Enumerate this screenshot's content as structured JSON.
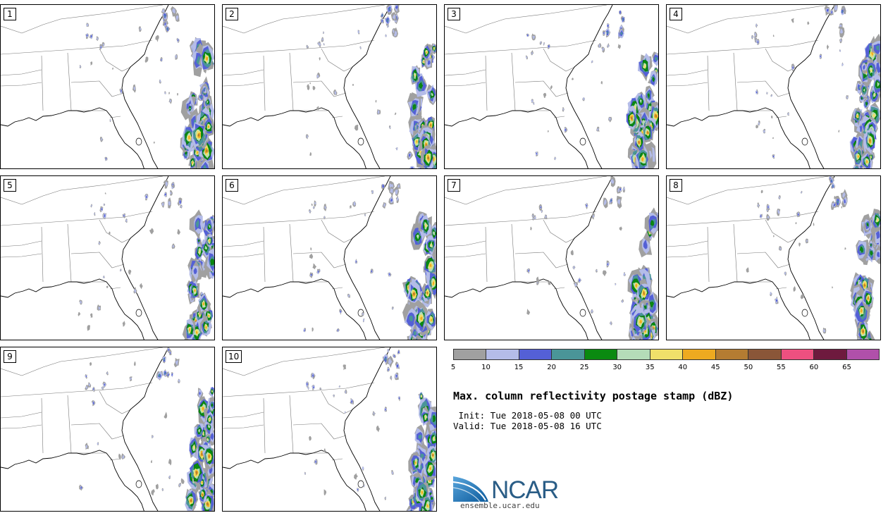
{
  "panels": [
    {
      "label": "1"
    },
    {
      "label": "2"
    },
    {
      "label": "3"
    },
    {
      "label": "4"
    },
    {
      "label": "5"
    },
    {
      "label": "6"
    },
    {
      "label": "7"
    },
    {
      "label": "8"
    },
    {
      "label": "9"
    },
    {
      "label": "10"
    }
  ],
  "colorbar": {
    "colors": [
      "#a0a0a0",
      "#b4bce8",
      "#5460d6",
      "#4a9598",
      "#0a8a10",
      "#b4dcb8",
      "#f0e06a",
      "#eeaa20",
      "#b47c32",
      "#8a5638",
      "#ee5080",
      "#6e1a3e",
      "#b050aa"
    ],
    "ticks": [
      "5",
      "10",
      "15",
      "20",
      "25",
      "30",
      "35",
      "40",
      "45",
      "50",
      "55",
      "60",
      "65"
    ]
  },
  "title": "Max. column reflectivity postage stamp (dBZ)",
  "init": " Init: Tue 2018-05-08 00 UTC",
  "valid": "Valid: Tue 2018-05-08 16 UTC",
  "logo": {
    "text": "NCAR",
    "site": "ensemble.ucar.edu"
  }
}
